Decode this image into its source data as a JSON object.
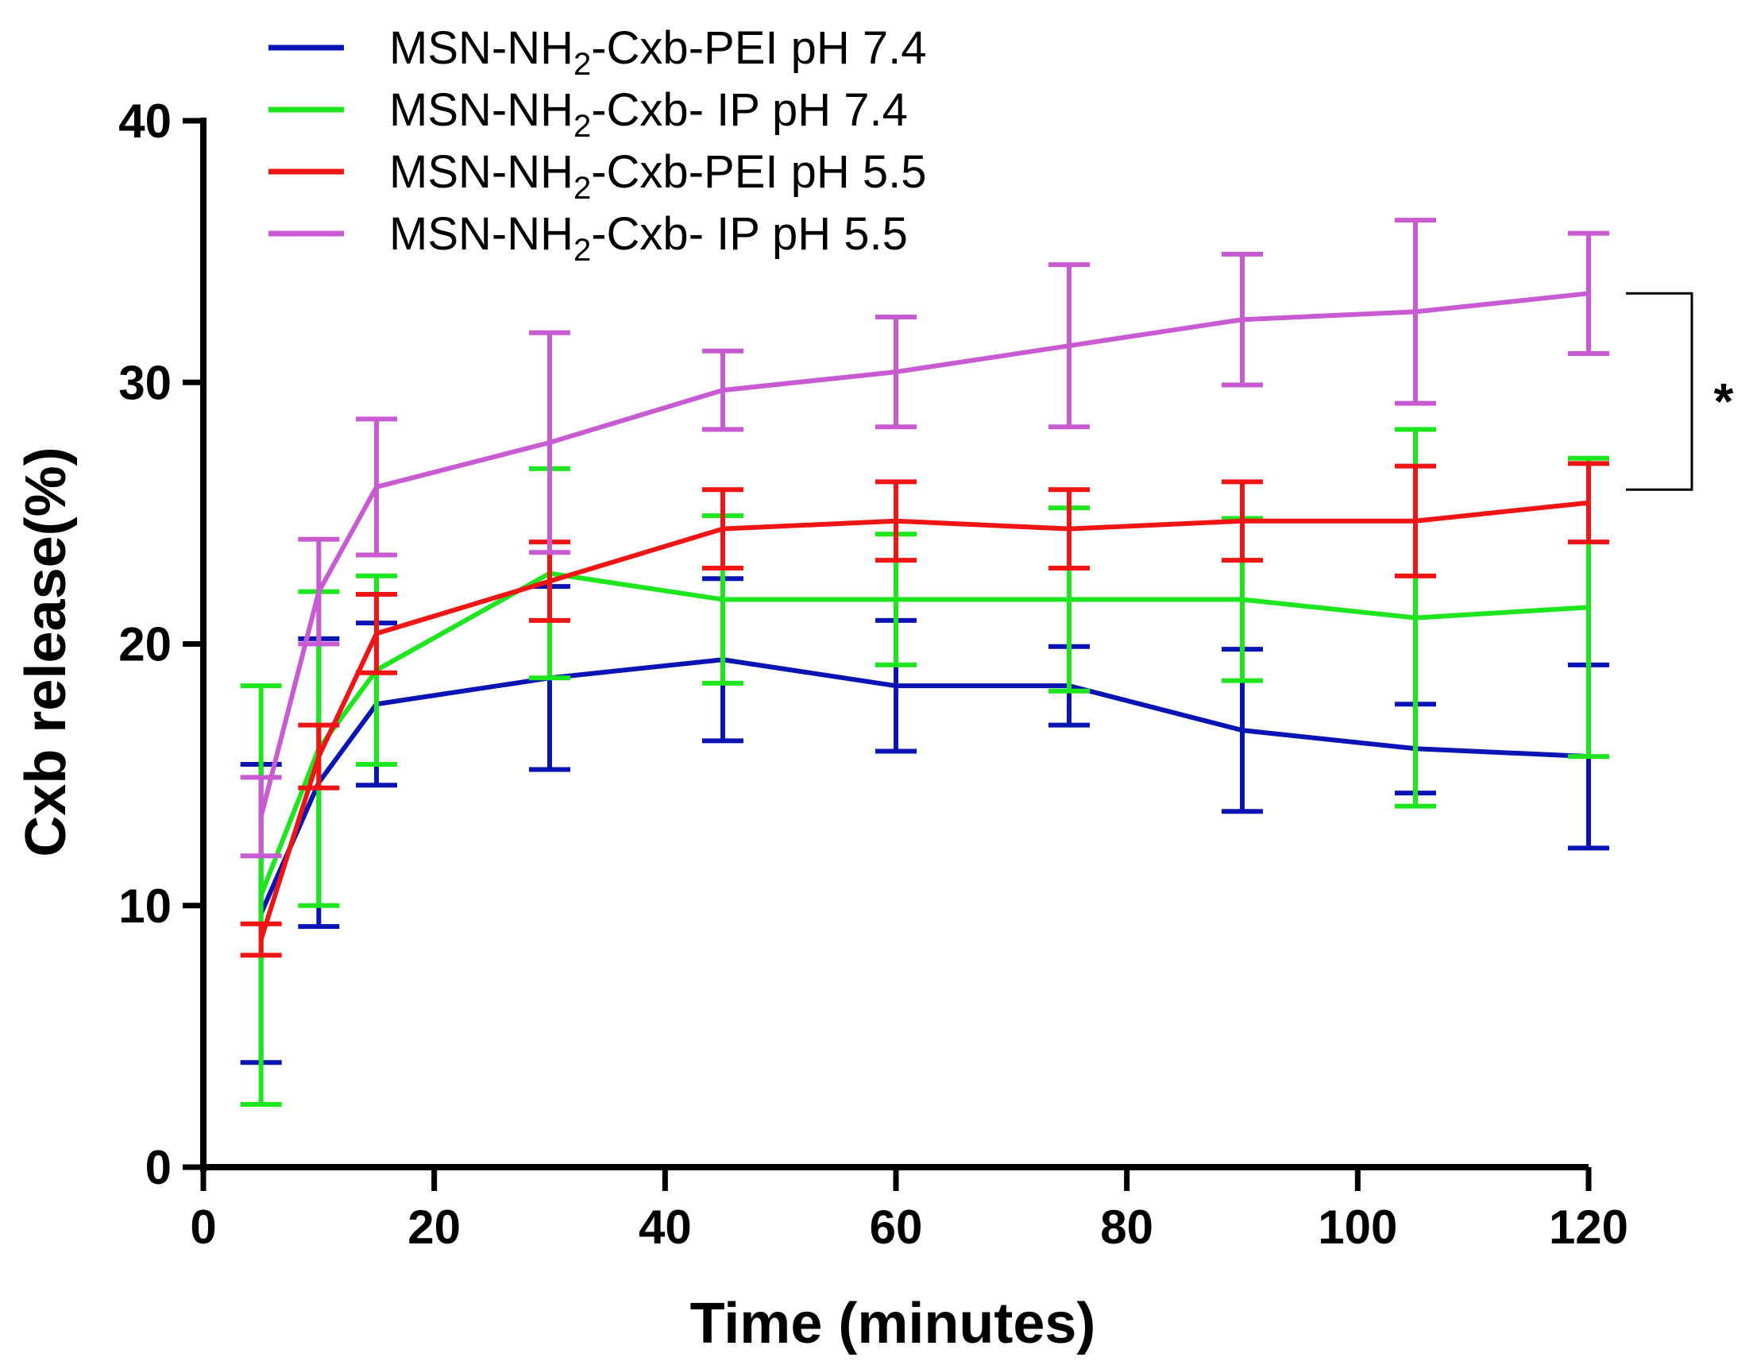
{
  "chart_data": {
    "type": "line",
    "title": "",
    "xlabel": "Time (minutes)",
    "ylabel": "Cxb release(%)",
    "xlim": [
      0,
      120
    ],
    "ylim": [
      0,
      40
    ],
    "xticks": [
      0,
      20,
      40,
      60,
      80,
      100,
      120
    ],
    "yticks": [
      0,
      10,
      20,
      30,
      40
    ],
    "grid": false,
    "legend_position": "top-left",
    "x": [
      5,
      10,
      15,
      30,
      45,
      60,
      75,
      90,
      105,
      120
    ],
    "series": [
      {
        "name": "MSN-NH2-Cxb-PEI pH 7.4",
        "legend_prefix": "MSN-NH",
        "legend_sub": "2",
        "legend_suffix": "-Cxb-PEI pH 7.4",
        "color": "#0a14b4",
        "values": [
          9.7,
          14.7,
          17.7,
          18.7,
          19.4,
          18.4,
          18.4,
          16.7,
          16.0,
          15.7
        ],
        "err_low": [
          5.7,
          5.5,
          3.1,
          3.5,
          3.1,
          2.5,
          1.5,
          3.1,
          1.7,
          3.5
        ],
        "err_high": [
          5.7,
          5.5,
          3.1,
          3.5,
          3.1,
          2.5,
          1.5,
          3.1,
          1.7,
          3.5
        ]
      },
      {
        "name": "MSN-NH2-Cxb- IP pH 7.4",
        "legend_prefix": "MSN-NH",
        "legend_sub": "2",
        "legend_suffix": "-Cxb- IP pH 7.4",
        "color": "#1ee61e",
        "values": [
          10.4,
          16.0,
          19.0,
          22.7,
          21.7,
          21.7,
          21.7,
          21.7,
          21.0,
          21.4
        ],
        "err_low": [
          8.0,
          6.0,
          3.6,
          4.0,
          3.2,
          2.5,
          3.5,
          3.1,
          7.2,
          5.7
        ],
        "err_high": [
          8.0,
          6.0,
          3.6,
          4.0,
          3.2,
          2.5,
          3.5,
          3.1,
          7.2,
          5.7
        ]
      },
      {
        "name": "MSN-NH2-Cxb-PEI pH 5.5",
        "legend_prefix": "MSN-NH",
        "legend_sub": "2",
        "legend_suffix": "-Cxb-PEI pH 5.5",
        "color": "#f01414",
        "values": [
          8.7,
          15.7,
          20.4,
          22.4,
          24.4,
          24.7,
          24.4,
          24.7,
          24.7,
          25.4
        ],
        "err_low": [
          0.6,
          1.2,
          1.5,
          1.5,
          1.5,
          1.5,
          1.5,
          1.5,
          2.1,
          1.5
        ],
        "err_high": [
          0.6,
          1.2,
          1.5,
          1.5,
          1.5,
          1.5,
          1.5,
          1.5,
          2.1,
          1.5
        ]
      },
      {
        "name": "MSN-NH2-Cxb- IP pH 5.5",
        "legend_prefix": "MSN-NH",
        "legend_sub": "2",
        "legend_suffix": "-Cxb- IP pH 5.5",
        "color": "#c85ad2",
        "values": [
          13.4,
          22.0,
          26.0,
          27.7,
          29.7,
          30.4,
          31.4,
          32.4,
          32.7,
          33.4
        ],
        "err_low": [
          1.5,
          2.0,
          2.6,
          4.2,
          1.5,
          2.1,
          3.1,
          2.5,
          3.5,
          2.3
        ],
        "err_high": [
          1.5,
          2.0,
          2.6,
          4.2,
          1.5,
          2.1,
          3.1,
          2.5,
          3.5,
          2.3
        ]
      }
    ],
    "annotations": [
      {
        "type": "significance-bracket",
        "label": "*",
        "x": 120,
        "y_from": 33.4,
        "y_to": 25.9
      }
    ]
  }
}
